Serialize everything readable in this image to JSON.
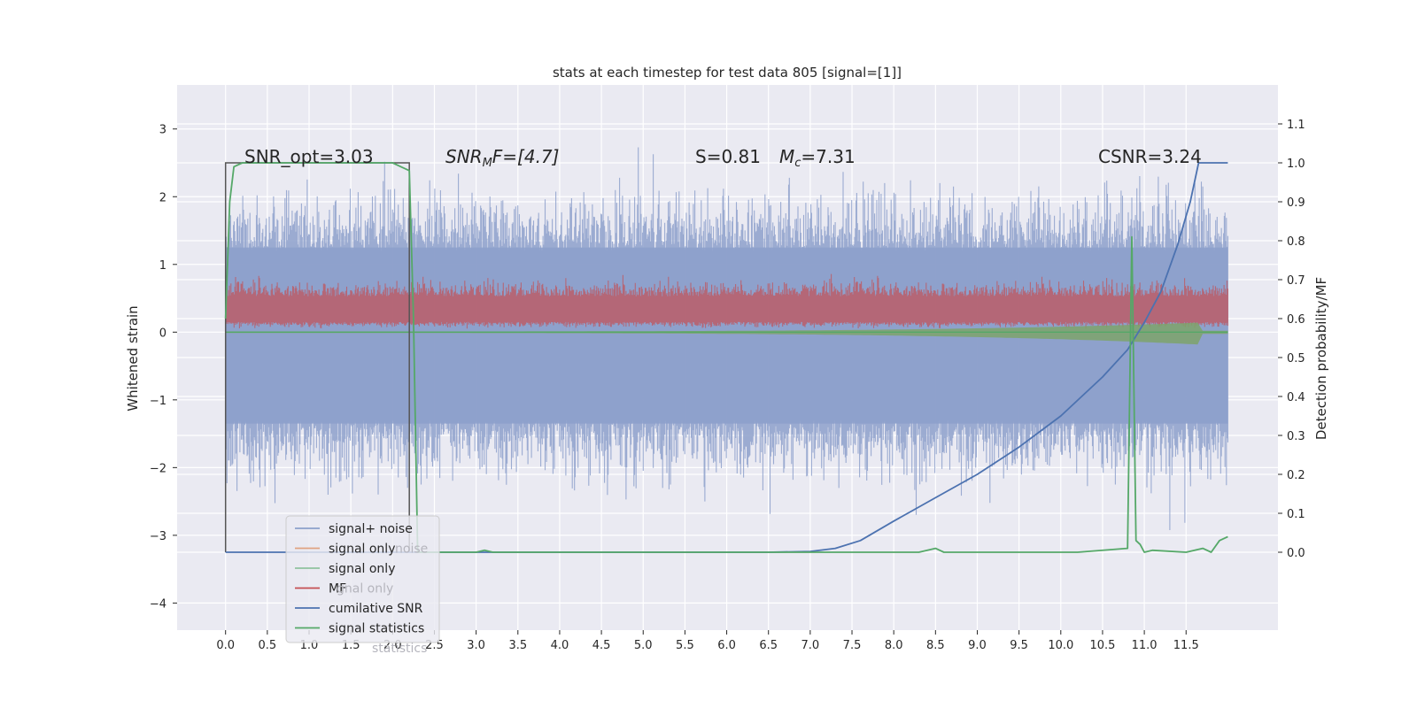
{
  "chart_data": {
    "type": "line",
    "title": "stats at each timestep for test data 805 [signal=[1]]",
    "ylabel_left": "Whitened strain",
    "ylabel_right": "Detection probability/MF",
    "xlim": [
      -0.58,
      12.6
    ],
    "ylim_left": [
      -4.4,
      3.65
    ],
    "ylim_right": [
      -0.2,
      1.2
    ],
    "x_ticks": [
      "0.0",
      "0.5",
      "1.0",
      "1.5",
      "2.0",
      "2.5",
      "3.0",
      "3.5",
      "4.0",
      "4.5",
      "5.0",
      "5.5",
      "6.0",
      "6.5",
      "7.0",
      "7.5",
      "8.0",
      "8.5",
      "9.0",
      "9.5",
      "10.0",
      "10.5",
      "11.0",
      "11.5"
    ],
    "y_ticks_left": [
      "3",
      "2",
      "1",
      "0",
      "−1",
      "−2",
      "−3",
      "−4"
    ],
    "y_ticks_right": [
      "1.1",
      "1.0",
      "0.9",
      "0.8",
      "0.7",
      "0.6",
      "0.5",
      "0.4",
      "0.3",
      "0.2",
      "0.1",
      "0.0"
    ],
    "annotations": {
      "snr_opt": "SNR_opt=3.03",
      "snr_mf_name": "SNR",
      "snr_mf_sub": "M",
      "snr_mf_suffix": "F=[4.7]",
      "s_value": "S=0.81",
      "mc_name": "M",
      "mc_sub": "c",
      "mc_value": "=7.31",
      "csnr": "CSNR=3.24"
    },
    "legend": {
      "placement": "lower-left",
      "entries": [
        "signal+ noise",
        "signal only",
        "signal only",
        "MF",
        "cumilative SNR",
        "signal statistics"
      ],
      "ghost_entries": [
        "noise",
        "gnal only",
        "",
        "statistics"
      ]
    },
    "series": [
      {
        "name": "signal+ noise",
        "color": "#8da0cb",
        "axis": "left",
        "kind": "noise",
        "x_start": 0.0,
        "x_end": 12.0,
        "amplitude": 1.3
      },
      {
        "name": "signal only",
        "color": "#55a868",
        "axis": "left",
        "kind": "chirp",
        "x_start": 0.0,
        "x_end": 12.0
      },
      {
        "name": "MF",
        "color": "#c44e52",
        "axis": "left",
        "kind": "mf_band",
        "center": 0.35,
        "amplitude": 0.2
      },
      {
        "name": "cumilative SNR",
        "color": "#4c72b0",
        "axis": "right",
        "x": [
          0.0,
          6.5,
          7.0,
          7.3,
          7.6,
          8.0,
          8.5,
          9.0,
          9.5,
          10.0,
          10.5,
          10.8,
          11.0,
          11.2,
          11.4,
          11.55,
          11.65,
          12.0
        ],
        "y": [
          0.0,
          0.0,
          0.002,
          0.01,
          0.03,
          0.08,
          0.14,
          0.2,
          0.27,
          0.35,
          0.45,
          0.52,
          0.59,
          0.67,
          0.79,
          0.9,
          1.0,
          1.0
        ]
      },
      {
        "name": "signal statistics",
        "color": "#55a868",
        "axis": "right",
        "x": [
          0.0,
          0.05,
          0.1,
          0.2,
          1.0,
          1.5,
          2.0,
          2.1,
          2.2,
          2.25,
          2.3,
          3.0,
          3.1,
          3.2,
          8.3,
          8.5,
          8.6,
          9.0,
          10.2,
          10.8,
          10.85,
          10.9,
          10.95,
          11.0,
          11.1,
          11.5,
          11.7,
          11.8,
          11.9,
          12.0
        ],
        "y": [
          0.6,
          0.9,
          0.99,
          1.0,
          1.0,
          1.0,
          1.0,
          0.99,
          0.98,
          0.6,
          0.0,
          0.0,
          0.005,
          0.0,
          0.0,
          0.01,
          0.0,
          0.0,
          0.0,
          0.01,
          0.81,
          0.03,
          0.02,
          0.0,
          0.005,
          0.0,
          0.01,
          0.0,
          0.03,
          0.04
        ]
      },
      {
        "name": "window",
        "color": "#555555",
        "axis": "right",
        "kind": "rect",
        "x0": 0.0,
        "x1": 2.2,
        "y0": 0.0,
        "y1": 1.0
      }
    ]
  },
  "colors": {
    "plot_bg": "#eaeaf2",
    "grid": "#ffffff",
    "text": "#262626"
  }
}
